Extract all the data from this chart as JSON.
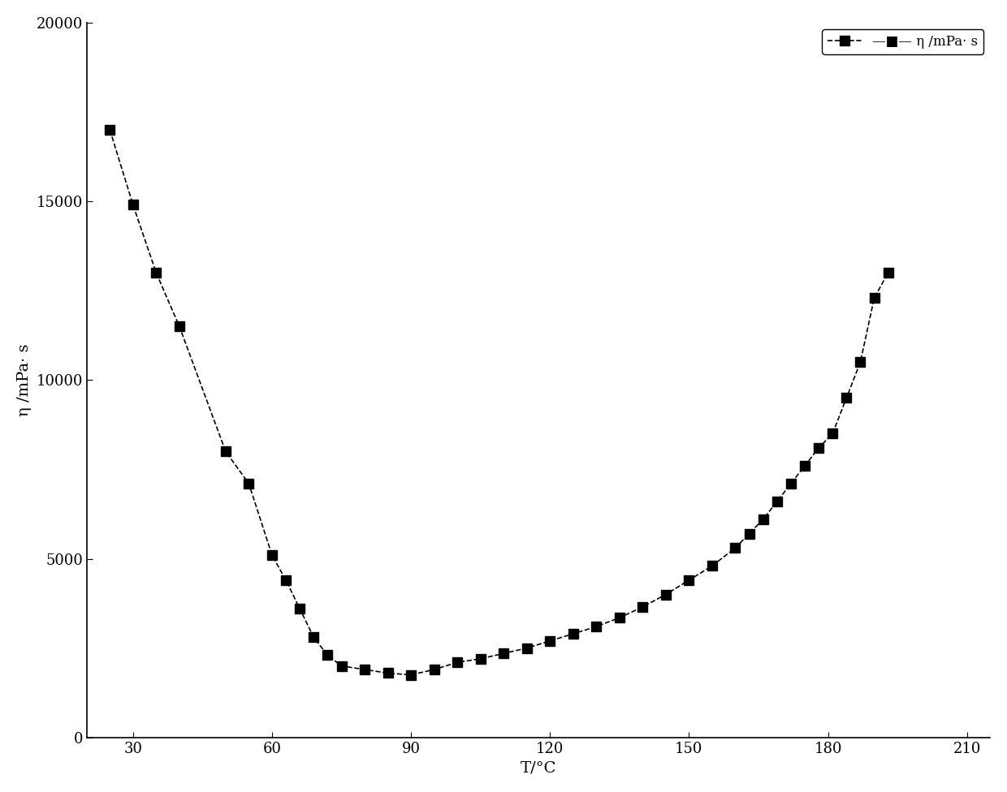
{
  "x": [
    25,
    30,
    35,
    40,
    50,
    55,
    60,
    63,
    66,
    69,
    72,
    75,
    80,
    85,
    90,
    95,
    100,
    105,
    110,
    115,
    120,
    125,
    130,
    135,
    140,
    145,
    150,
    155,
    160,
    163,
    166,
    169,
    172,
    175,
    178,
    181,
    184,
    187,
    190,
    193
  ],
  "y": [
    17000,
    14900,
    13000,
    11500,
    8000,
    7100,
    5100,
    4400,
    3600,
    2800,
    2300,
    2000,
    1900,
    1800,
    1750,
    1900,
    2100,
    2200,
    2350,
    2500,
    2700,
    2900,
    3100,
    3350,
    3650,
    4000,
    4400,
    4800,
    5300,
    5700,
    6100,
    6600,
    7100,
    7600,
    8100,
    8500,
    9500,
    10500,
    12300,
    13000
  ],
  "xlabel": "T/°C",
  "ylabel": "η /mPa· s",
  "legend_label": "—■— η /mPa· s",
  "xlim": [
    20,
    215
  ],
  "ylim": [
    0,
    20000
  ],
  "xticks": [
    30,
    60,
    90,
    120,
    150,
    180,
    210
  ],
  "yticks": [
    0,
    5000,
    10000,
    15000,
    20000
  ],
  "line_color": "#000000",
  "marker_color": "#000000",
  "background_color": "#ffffff",
  "axis_fontsize": 14,
  "tick_fontsize": 13,
  "legend_fontsize": 12,
  "marker_size": 9,
  "line_width": 1.2
}
